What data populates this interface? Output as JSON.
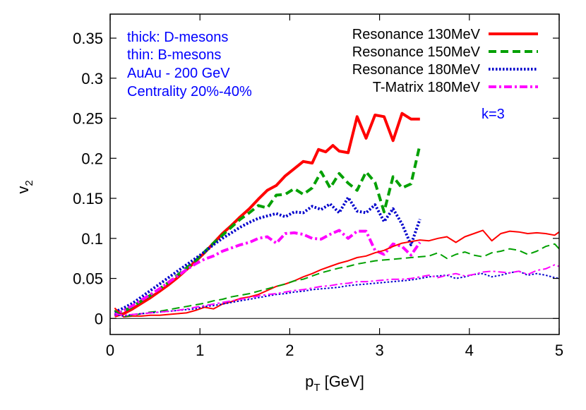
{
  "chart_data": {
    "type": "line",
    "xlabel": "p",
    "xlabel_sub": "T",
    "xlabel_unit": "[GeV]",
    "ylabel": "v",
    "ylabel_sub": "2",
    "xlim": [
      0,
      5
    ],
    "ylim": [
      -0.02,
      0.38
    ],
    "xticks": [
      0,
      1,
      2,
      3,
      4,
      5
    ],
    "xtick_labels": [
      "0",
      "1",
      "2",
      "3",
      "4",
      "5"
    ],
    "yticks": [
      0,
      0.05,
      0.1,
      0.15,
      0.2,
      0.25,
      0.3,
      0.35
    ],
    "ytick_labels": [
      "0",
      "0.05",
      "0.1",
      "0.15",
      "0.2",
      "0.25",
      "0.3",
      "0.35"
    ],
    "zero_line": true,
    "legend_position": "top-right",
    "annotations": [
      "thick: D-mesons",
      "thin: B-mesons",
      "AuAu - 200 GeV",
      "Centrality 20%-40%"
    ],
    "k_label": "k=3",
    "series": [
      {
        "name": "Resonance 130MeV",
        "color": "#ff0000",
        "dash": "solid",
        "meson": "D",
        "x": [
          0.05,
          0.15,
          0.25,
          0.35,
          0.45,
          0.55,
          0.65,
          0.75,
          0.85,
          0.95,
          1.05,
          1.15,
          1.25,
          1.35,
          1.45,
          1.55,
          1.65,
          1.75,
          1.85,
          1.95,
          2.05,
          2.15,
          2.25,
          2.32,
          2.4,
          2.48,
          2.55,
          2.65,
          2.75,
          2.85,
          2.95,
          3.05,
          3.15,
          3.25,
          3.35,
          3.45
        ],
        "y": [
          0.003,
          0.006,
          0.012,
          0.019,
          0.026,
          0.034,
          0.042,
          0.051,
          0.061,
          0.071,
          0.082,
          0.094,
          0.106,
          0.116,
          0.127,
          0.137,
          0.149,
          0.16,
          0.166,
          0.178,
          0.187,
          0.196,
          0.194,
          0.211,
          0.208,
          0.216,
          0.209,
          0.207,
          0.252,
          0.225,
          0.254,
          0.252,
          0.222,
          0.256,
          0.249,
          0.249
        ]
      },
      {
        "name": "Resonance 150MeV",
        "color": "#00a000",
        "dash": "dashed",
        "meson": "D",
        "x": [
          0.05,
          0.15,
          0.25,
          0.35,
          0.45,
          0.55,
          0.65,
          0.75,
          0.85,
          0.95,
          1.05,
          1.15,
          1.25,
          1.35,
          1.45,
          1.55,
          1.65,
          1.75,
          1.85,
          1.95,
          2.05,
          2.15,
          2.25,
          2.35,
          2.45,
          2.55,
          2.65,
          2.75,
          2.85,
          2.95,
          3.05,
          3.15,
          3.25,
          3.35,
          3.45
        ],
        "y": [
          0.005,
          0.009,
          0.015,
          0.022,
          0.029,
          0.037,
          0.045,
          0.054,
          0.063,
          0.072,
          0.083,
          0.094,
          0.104,
          0.114,
          0.124,
          0.132,
          0.141,
          0.138,
          0.154,
          0.155,
          0.162,
          0.155,
          0.163,
          0.183,
          0.163,
          0.181,
          0.169,
          0.16,
          0.183,
          0.17,
          0.133,
          0.177,
          0.163,
          0.168,
          0.217
        ]
      },
      {
        "name": "Resonance 180MeV",
        "color": "#0000cc",
        "dash": "dotted",
        "meson": "D",
        "x": [
          0.05,
          0.15,
          0.25,
          0.35,
          0.45,
          0.55,
          0.65,
          0.75,
          0.85,
          0.95,
          1.05,
          1.15,
          1.25,
          1.35,
          1.45,
          1.55,
          1.65,
          1.75,
          1.85,
          1.95,
          2.05,
          2.15,
          2.25,
          2.35,
          2.45,
          2.55,
          2.65,
          2.75,
          2.85,
          2.95,
          3.05,
          3.15,
          3.25,
          3.35,
          3.45
        ],
        "y": [
          0.008,
          0.013,
          0.019,
          0.027,
          0.035,
          0.043,
          0.051,
          0.059,
          0.067,
          0.075,
          0.083,
          0.092,
          0.1,
          0.107,
          0.114,
          0.12,
          0.125,
          0.128,
          0.131,
          0.127,
          0.133,
          0.132,
          0.14,
          0.136,
          0.143,
          0.132,
          0.151,
          0.134,
          0.132,
          0.142,
          0.121,
          0.137,
          0.118,
          0.092,
          0.124
        ]
      },
      {
        "name": "T-Matrix 180MeV",
        "color": "#ff00ff",
        "dash": "dashdot",
        "meson": "D",
        "x": [
          0.05,
          0.15,
          0.25,
          0.35,
          0.45,
          0.55,
          0.65,
          0.75,
          0.85,
          0.95,
          1.05,
          1.15,
          1.25,
          1.35,
          1.45,
          1.55,
          1.65,
          1.75,
          1.85,
          1.95,
          2.05,
          2.15,
          2.25,
          2.35,
          2.45,
          2.55,
          2.65,
          2.75,
          2.85,
          2.95,
          3.05,
          3.15,
          3.25,
          3.35,
          3.45
        ],
        "y": [
          0.004,
          0.01,
          0.016,
          0.023,
          0.03,
          0.037,
          0.045,
          0.053,
          0.061,
          0.068,
          0.074,
          0.078,
          0.084,
          0.088,
          0.092,
          0.095,
          0.1,
          0.102,
          0.094,
          0.106,
          0.107,
          0.105,
          0.1,
          0.099,
          0.105,
          0.11,
          0.1,
          0.109,
          0.109,
          0.085,
          0.08,
          0.093,
          0.09,
          0.079,
          0.095
        ]
      },
      {
        "name": "Resonance 130MeV",
        "color": "#ff0000",
        "dash": "solid",
        "meson": "B",
        "x": [
          0.05,
          0.15,
          0.25,
          0.35,
          0.45,
          0.55,
          0.65,
          0.75,
          0.85,
          0.95,
          1.05,
          1.15,
          1.25,
          1.35,
          1.45,
          1.55,
          1.65,
          1.75,
          1.85,
          1.95,
          2.05,
          2.15,
          2.25,
          2.35,
          2.45,
          2.55,
          2.65,
          2.75,
          2.85,
          2.95,
          3.05,
          3.15,
          3.25,
          3.35,
          3.45,
          3.55,
          3.65,
          3.75,
          3.85,
          3.95,
          4.05,
          4.15,
          4.25,
          4.35,
          4.45,
          4.55,
          4.65,
          4.75,
          4.85,
          4.95,
          5.0
        ],
        "y": [
          0.013,
          0.002,
          0.003,
          0.003,
          0.004,
          0.004,
          0.005,
          0.006,
          0.007,
          0.01,
          0.014,
          0.012,
          0.018,
          0.021,
          0.025,
          0.027,
          0.03,
          0.035,
          0.04,
          0.043,
          0.047,
          0.052,
          0.056,
          0.061,
          0.065,
          0.069,
          0.072,
          0.076,
          0.078,
          0.082,
          0.085,
          0.09,
          0.094,
          0.096,
          0.098,
          0.097,
          0.1,
          0.102,
          0.095,
          0.102,
          0.106,
          0.11,
          0.097,
          0.106,
          0.109,
          0.108,
          0.106,
          0.107,
          0.106,
          0.104,
          0.108
        ]
      },
      {
        "name": "Resonance 150MeV",
        "color": "#00a000",
        "dash": "dashed",
        "meson": "B",
        "x": [
          0.05,
          0.15,
          0.25,
          0.35,
          0.45,
          0.55,
          0.65,
          0.75,
          0.85,
          0.95,
          1.05,
          1.15,
          1.25,
          1.35,
          1.45,
          1.55,
          1.65,
          1.75,
          1.85,
          1.95,
          2.05,
          2.15,
          2.25,
          2.35,
          2.45,
          2.55,
          2.65,
          2.75,
          2.85,
          2.95,
          3.05,
          3.15,
          3.25,
          3.35,
          3.45,
          3.55,
          3.65,
          3.75,
          3.85,
          3.95,
          4.05,
          4.15,
          4.25,
          4.35,
          4.45,
          4.55,
          4.65,
          4.75,
          4.85,
          4.95,
          5.0
        ],
        "y": [
          0.01,
          0.002,
          0.004,
          0.006,
          0.008,
          0.009,
          0.011,
          0.013,
          0.015,
          0.017,
          0.019,
          0.022,
          0.024,
          0.027,
          0.029,
          0.031,
          0.034,
          0.037,
          0.04,
          0.043,
          0.047,
          0.049,
          0.053,
          0.057,
          0.06,
          0.063,
          0.065,
          0.068,
          0.07,
          0.072,
          0.073,
          0.074,
          0.075,
          0.076,
          0.077,
          0.078,
          0.082,
          0.075,
          0.08,
          0.083,
          0.079,
          0.077,
          0.082,
          0.084,
          0.087,
          0.085,
          0.08,
          0.084,
          0.09,
          0.093,
          0.087
        ]
      },
      {
        "name": "Resonance 180MeV",
        "color": "#0000cc",
        "dash": "dotted",
        "meson": "B",
        "x": [
          0.05,
          0.15,
          0.25,
          0.35,
          0.45,
          0.55,
          0.65,
          0.75,
          0.85,
          0.95,
          1.05,
          1.15,
          1.25,
          1.35,
          1.45,
          1.55,
          1.65,
          1.75,
          1.85,
          1.95,
          2.05,
          2.15,
          2.25,
          2.35,
          2.45,
          2.55,
          2.65,
          2.75,
          2.85,
          2.95,
          3.05,
          3.15,
          3.25,
          3.35,
          3.45,
          3.55,
          3.65,
          3.75,
          3.85,
          3.95,
          4.05,
          4.15,
          4.25,
          4.35,
          4.45,
          4.55,
          4.65,
          4.75,
          4.85,
          4.95,
          5.0
        ],
        "y": [
          0.005,
          0.003,
          0.005,
          0.006,
          0.007,
          0.008,
          0.009,
          0.01,
          0.011,
          0.012,
          0.015,
          0.016,
          0.018,
          0.02,
          0.022,
          0.024,
          0.026,
          0.028,
          0.03,
          0.031,
          0.033,
          0.034,
          0.036,
          0.037,
          0.038,
          0.039,
          0.041,
          0.042,
          0.043,
          0.044,
          0.045,
          0.046,
          0.047,
          0.048,
          0.05,
          0.052,
          0.053,
          0.054,
          0.05,
          0.052,
          0.055,
          0.056,
          0.052,
          0.054,
          0.057,
          0.059,
          0.054,
          0.056,
          0.054,
          0.051,
          0.05
        ]
      },
      {
        "name": "T-Matrix 180MeV",
        "color": "#ff00ff",
        "dash": "dashdot",
        "meson": "B",
        "x": [
          0.05,
          0.15,
          0.25,
          0.35,
          0.45,
          0.55,
          0.65,
          0.75,
          0.85,
          0.95,
          1.05,
          1.15,
          1.25,
          1.35,
          1.45,
          1.55,
          1.65,
          1.75,
          1.85,
          1.95,
          2.05,
          2.15,
          2.25,
          2.35,
          2.45,
          2.55,
          2.65,
          2.75,
          2.85,
          2.95,
          3.05,
          3.15,
          3.25,
          3.35,
          3.45,
          3.55,
          3.65,
          3.75,
          3.85,
          3.95,
          4.05,
          4.15,
          4.25,
          4.35,
          4.45,
          4.55,
          4.65,
          4.75,
          4.85,
          4.95,
          5.0
        ],
        "y": [
          0.006,
          0.004,
          0.005,
          0.006,
          0.007,
          0.008,
          0.009,
          0.01,
          0.012,
          0.014,
          0.016,
          0.018,
          0.02,
          0.022,
          0.024,
          0.026,
          0.028,
          0.03,
          0.031,
          0.033,
          0.035,
          0.036,
          0.038,
          0.04,
          0.041,
          0.043,
          0.044,
          0.046,
          0.046,
          0.047,
          0.048,
          0.049,
          0.049,
          0.05,
          0.052,
          0.054,
          0.051,
          0.054,
          0.056,
          0.053,
          0.055,
          0.058,
          0.059,
          0.058,
          0.057,
          0.059,
          0.055,
          0.06,
          0.062,
          0.067,
          0.065
        ]
      }
    ]
  }
}
